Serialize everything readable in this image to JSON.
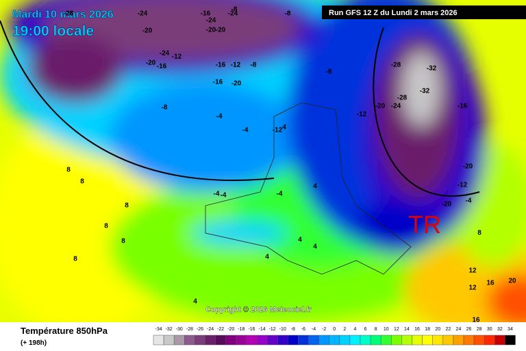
{
  "header": {
    "date": "Mardi 10 mars 2026",
    "time": "19:00 locale",
    "run": "Run GFS 12 Z du Lundi 2 mars 2026"
  },
  "map": {
    "marker": "TR",
    "copyright": "Copyright © 2026 Meteociel.fr",
    "contour_labels": [
      "-28",
      "-24",
      "-20",
      "-16",
      "-24",
      "-24",
      "-20",
      "-8",
      "-20",
      "-24",
      "-20",
      "-16",
      "-12",
      "-8",
      "-16",
      "-12",
      "-8",
      "-16",
      "-20",
      "-8",
      "-8",
      "-4",
      "-4",
      "-4",
      "-4",
      "-4",
      "4",
      "4",
      "4",
      "4",
      "4",
      "4",
      "8",
      "8",
      "8",
      "8",
      "8",
      "8",
      "-12",
      "-20",
      "-24",
      "-28",
      "-32",
      "-32",
      "-28",
      "-16",
      "-20",
      "-20",
      "-12",
      "-4",
      "8",
      "12",
      "12",
      "16",
      "16",
      "20",
      "-12"
    ]
  },
  "legend": {
    "title": "Température 850hPa",
    "subtitle": "(+ 198h)",
    "scale": {
      "values": [
        -34,
        -32,
        -30,
        -28,
        -26,
        -24,
        -22,
        -20,
        -18,
        -16,
        -14,
        -12,
        -10,
        -8,
        -6,
        -4,
        -2,
        0,
        2,
        4,
        6,
        8,
        10,
        12,
        14,
        16,
        18,
        20,
        22,
        24,
        26,
        28,
        30,
        32,
        34
      ],
      "colors": [
        "#e6e6e6",
        "#c8c8c8",
        "#a89aa8",
        "#8c5a8c",
        "#7a3c7a",
        "#6a1f6a",
        "#5a0a5a",
        "#800080",
        "#9a009a",
        "#b400b4",
        "#9600c8",
        "#6400c8",
        "#3200c8",
        "#0000c8",
        "#0032dc",
        "#0064f0",
        "#0096ff",
        "#00b4ff",
        "#00d2ff",
        "#00f0ff",
        "#00ffc8",
        "#00ff78",
        "#32ff32",
        "#78ff00",
        "#b4ff00",
        "#e6ff00",
        "#ffff00",
        "#ffe600",
        "#ffc800",
        "#ffa000",
        "#ff7800",
        "#ff5000",
        "#ff2800",
        "#c80000",
        "#000000"
      ]
    }
  }
}
